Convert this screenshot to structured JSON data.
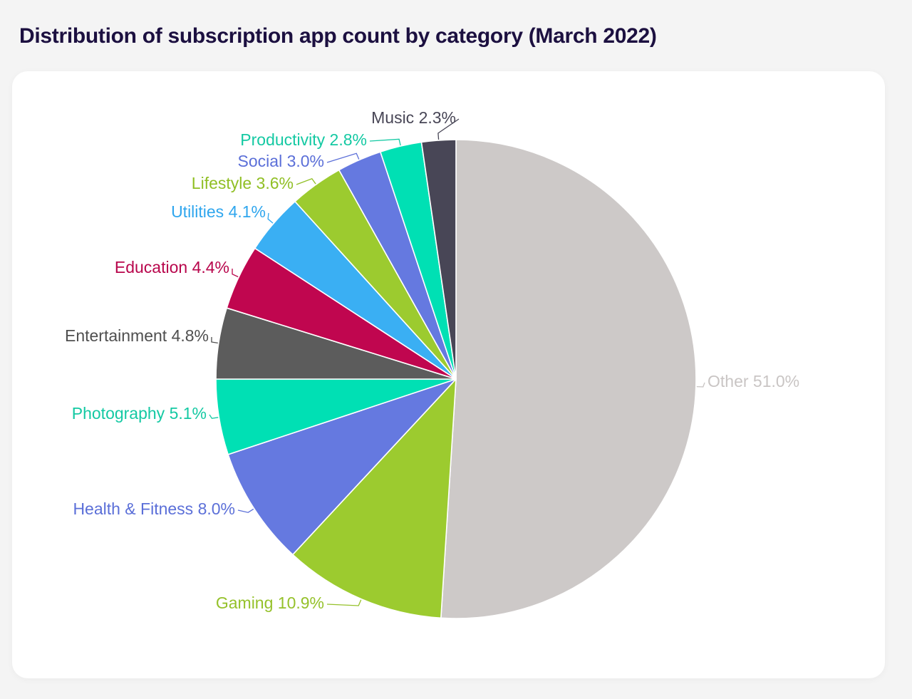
{
  "title": "Distribution of subscription app count by category (March 2022)",
  "chart_data": {
    "type": "pie",
    "title": "Distribution of subscription app count by category (March 2022)",
    "unit": "%",
    "slices": [
      {
        "label": "Other",
        "value": 51.0,
        "display": "Other 51.0%",
        "color": "#cdc9c8",
        "label_color": "#c9c5c4"
      },
      {
        "label": "Gaming",
        "value": 10.9,
        "display": "Gaming 10.9%",
        "color": "#9ccb2f",
        "label_color": "#95c12a"
      },
      {
        "label": "Health & Fitness",
        "value": 8.0,
        "display": "Health & Fitness 8.0%",
        "color": "#6579e0",
        "label_color": "#5b6fd8"
      },
      {
        "label": "Photography",
        "value": 5.1,
        "display": "Photography 5.1%",
        "color": "#00e0b4",
        "label_color": "#14c9a3"
      },
      {
        "label": "Entertainment",
        "value": 4.8,
        "display": "Entertainment 4.8%",
        "color": "#5c5c5c",
        "label_color": "#4f4f4f"
      },
      {
        "label": "Education",
        "value": 4.4,
        "display": "Education 4.4%",
        "color": "#c0064f",
        "label_color": "#b8064c"
      },
      {
        "label": "Utilities",
        "value": 4.1,
        "display": "Utilities 4.1%",
        "color": "#3aaff3",
        "label_color": "#2fa6ee"
      },
      {
        "label": "Lifestyle",
        "value": 3.6,
        "display": "Lifestyle 3.6%",
        "color": "#9ccb2f",
        "label_color": "#90bf24"
      },
      {
        "label": "Social",
        "value": 3.0,
        "display": "Social 3.0%",
        "color": "#6579e0",
        "label_color": "#5b6fd8"
      },
      {
        "label": "Productivity",
        "value": 2.8,
        "display": "Productivity 2.8%",
        "color": "#00e0b4",
        "label_color": "#14c9a3"
      },
      {
        "label": "Music",
        "value": 2.3,
        "display": "Music 2.3%",
        "color": "#484656",
        "label_color": "#484656"
      }
    ]
  }
}
